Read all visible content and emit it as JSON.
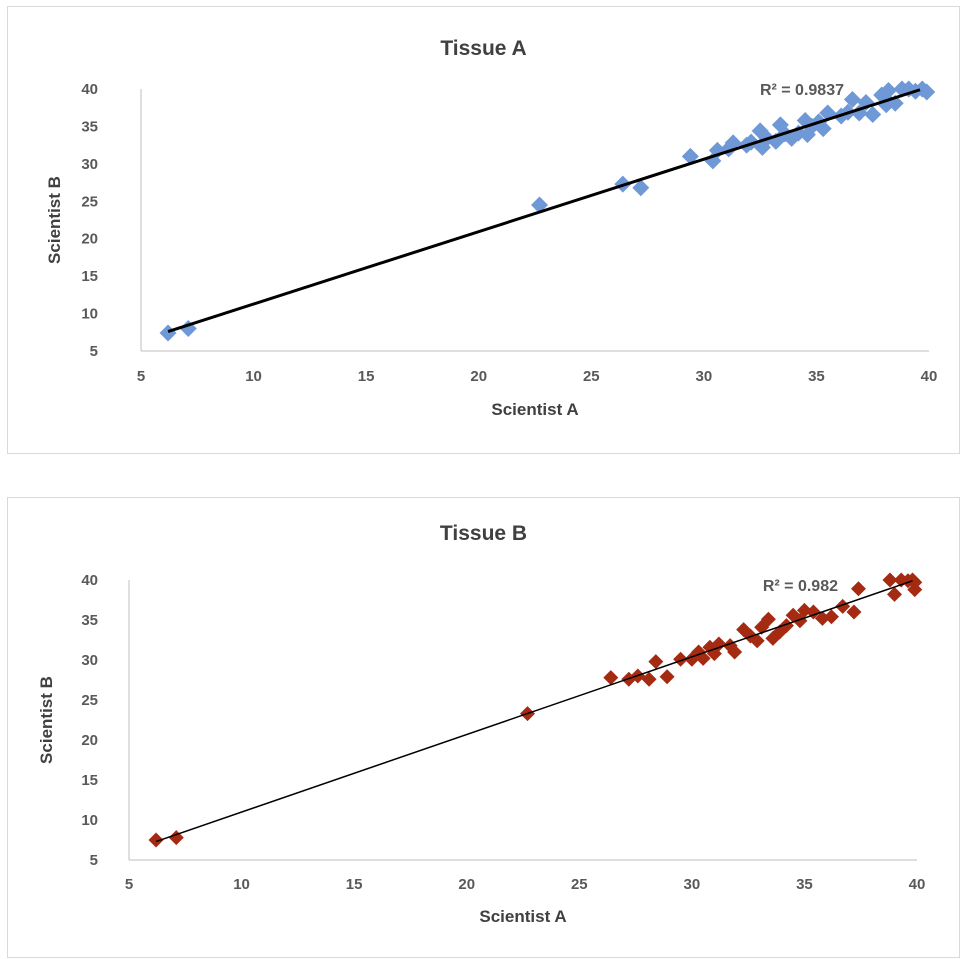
{
  "chart_data": [
    {
      "type": "scatter",
      "title": "Tissue A",
      "xlabel": "Scientist A",
      "ylabel": "Scientist B",
      "xlim": [
        5,
        40
      ],
      "ylim": [
        5,
        40
      ],
      "x_ticks": [
        "5",
        "10",
        "15",
        "20",
        "25",
        "30",
        "35",
        "40"
      ],
      "y_ticks": [
        "5",
        "10",
        "15",
        "20",
        "25",
        "30",
        "35",
        "40"
      ],
      "grid": false,
      "legend": "none",
      "marker": "diamond",
      "color": "#6f98d6",
      "trendline": {
        "type": "linear",
        "x": [
          6.2,
          39.6
        ],
        "y": [
          7.6,
          39.9
        ],
        "color": "#000000",
        "label": "R² = 0.9837"
      },
      "series": [
        {
          "x": [
            6.2,
            7.1,
            22.7,
            26.4,
            27.2,
            29.4,
            30.4,
            30.6,
            31.1,
            31.3,
            31.9,
            32.1,
            32.5,
            32.6,
            32.8,
            33.2,
            33.4,
            33.6,
            33.9,
            34.2,
            34.5,
            34.6,
            34.8,
            35.1,
            35.3,
            35.5,
            36.1,
            36.4,
            36.6,
            36.9,
            37.2,
            37.5,
            38.0,
            38.2,
            38.5,
            38.8,
            39.1,
            39.4,
            39.7,
            39.9,
            38.1,
            37.9
          ],
          "y": [
            7.4,
            8.0,
            24.5,
            27.3,
            26.8,
            31.0,
            30.4,
            31.8,
            32.0,
            32.8,
            32.5,
            32.9,
            34.4,
            32.2,
            33.4,
            33.0,
            35.2,
            34.0,
            33.4,
            34.1,
            35.8,
            33.9,
            35.0,
            35.6,
            34.7,
            36.8,
            36.4,
            36.9,
            38.6,
            36.8,
            38.2,
            36.6,
            38.9,
            39.8,
            38.1,
            40.0,
            40.0,
            39.7,
            40.0,
            39.6,
            37.9,
            39.2
          ]
        }
      ]
    },
    {
      "type": "scatter",
      "title": "Tissue B",
      "xlabel": "Scientist A",
      "ylabel": "Scientist B",
      "xlim": [
        5,
        40
      ],
      "ylim": [
        5,
        40
      ],
      "x_ticks": [
        "5",
        "10",
        "15",
        "20",
        "25",
        "30",
        "35",
        "40"
      ],
      "y_ticks": [
        "5",
        "10",
        "15",
        "20",
        "25",
        "30",
        "35",
        "40"
      ],
      "grid": false,
      "legend": "none",
      "marker": "diamond",
      "color": "#a52a12",
      "trendline": {
        "type": "linear",
        "x": [
          6.2,
          39.8
        ],
        "y": [
          7.3,
          39.9
        ],
        "color": "#000000",
        "label": "R² = 0.982"
      },
      "series": [
        {
          "x": [
            6.2,
            7.1,
            22.7,
            26.4,
            27.2,
            27.6,
            28.1,
            28.4,
            28.9,
            29.5,
            30.0,
            30.3,
            30.5,
            30.8,
            31.0,
            31.2,
            31.7,
            31.9,
            32.3,
            32.6,
            32.9,
            33.1,
            33.4,
            33.6,
            33.9,
            34.2,
            34.5,
            34.8,
            35.0,
            35.4,
            35.8,
            36.2,
            36.7,
            37.2,
            37.4,
            38.8,
            39.0,
            39.3,
            39.6,
            39.8,
            39.9,
            39.9
          ],
          "y": [
            7.5,
            7.8,
            23.3,
            27.8,
            27.6,
            28.0,
            27.6,
            29.8,
            27.9,
            30.1,
            30.1,
            31.0,
            30.2,
            31.6,
            30.8,
            32.0,
            31.8,
            31.0,
            33.8,
            33.0,
            32.4,
            34.1,
            35.1,
            32.7,
            33.5,
            34.3,
            35.6,
            34.9,
            36.2,
            36.0,
            35.2,
            35.4,
            36.7,
            36.0,
            38.9,
            40.0,
            38.2,
            40.0,
            39.9,
            40.0,
            38.8,
            39.7
          ]
        }
      ]
    }
  ]
}
